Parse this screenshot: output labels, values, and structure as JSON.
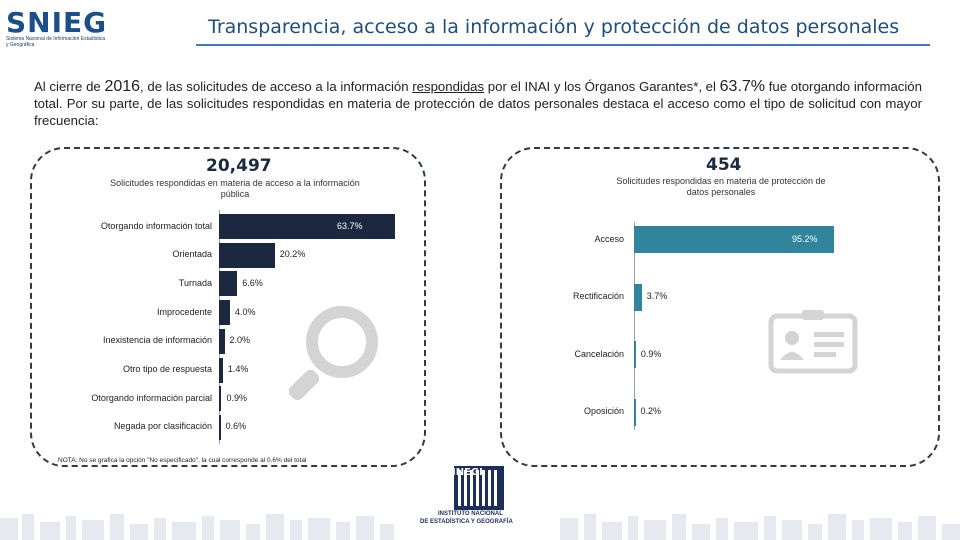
{
  "header": {
    "logo_text": "SNIEG",
    "logo_subtitle": "Sistema Nacional de Información Estadística y Geográfica",
    "title": "Transparencia, acceso a la información y protección de datos personales"
  },
  "intro": {
    "p1": "Al cierre de ",
    "year": "2016",
    "p2": ", de las solicitudes de acceso a la información ",
    "underlined": "respondidas",
    "p3": " por el INAI y los Órganos Garantes*, el ",
    "pct": "63.7%",
    "p4": " fue otorgando información total. Por su parte, de las solicitudes respondidas en materia de protección de datos personales destaca el acceso como el tipo de solicitud con mayor frecuencia:"
  },
  "left_panel": {
    "total": "20,497",
    "subtitle": "Solicitudes respondidas en materia de acceso a la información pública",
    "note": "NOTA: No se grafica la opción \"No especificado\", la cual corresponde al 0.6% del total"
  },
  "right_panel": {
    "total": "454",
    "subtitle": "Solicitudes respondidas en materia de protección de datos personales"
  },
  "chart_data": [
    {
      "type": "bar",
      "orientation": "horizontal",
      "title": "Solicitudes respondidas en materia de acceso a la información pública",
      "categories": [
        "Otorgando información total",
        "Orientada",
        "Turnada",
        "Improcedente",
        "Inexistencia de información",
        "Otro tipo de respuesta",
        "Otorgando información parcial",
        "Negada por clasificación"
      ],
      "values": [
        63.7,
        20.2,
        6.6,
        4.0,
        2.0,
        1.4,
        0.9,
        0.6
      ],
      "labels": [
        "63.7%",
        "20.2%",
        "6.6%",
        "4.0%",
        "2.0%",
        "1.4%",
        "0.9%",
        "0.6%"
      ],
      "unit": "%",
      "color": "#1c2840",
      "xlim": [
        0,
        63.7
      ]
    },
    {
      "type": "bar",
      "orientation": "horizontal",
      "title": "Solicitudes respondidas en materia de protección de datos personales",
      "categories": [
        "Acceso",
        "Rectificación",
        "Cancelación",
        "Oposición"
      ],
      "values": [
        95.2,
        3.7,
        0.9,
        0.2
      ],
      "labels": [
        "95.2%",
        "3.7%",
        "0.9%",
        "0.2%"
      ],
      "unit": "%",
      "color": "#31849b",
      "xlim": [
        0,
        95.2
      ]
    }
  ],
  "footer": {
    "inegi_logo": "INEGI",
    "inegi_name_1": "INSTITUTO NACIONAL",
    "inegi_name_2": "DE ESTADÍSTICA Y GEOGRAFÍA"
  },
  "icons": {
    "magnifier": "magnifier-icon",
    "id_card": "id-card-icon"
  }
}
